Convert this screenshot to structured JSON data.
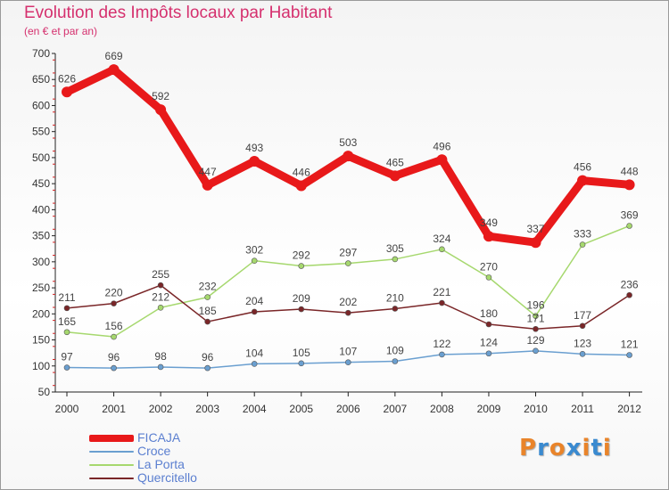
{
  "title": "Evolution des Impôts locaux par Habitant",
  "subtitle": "(en € et par an)",
  "logo": {
    "text": "Proxiti",
    "colors": [
      "#e9842a",
      "#3a8ad0",
      "#e9842a",
      "#3a8ad0",
      "#e9842a",
      "#3a8ad0",
      "#e9842a"
    ]
  },
  "chart_data": {
    "type": "line",
    "x": [
      "2000",
      "2001",
      "2002",
      "2003",
      "2004",
      "2005",
      "2006",
      "2007",
      "2008",
      "2009",
      "2010",
      "2011",
      "2012"
    ],
    "ylim": [
      50,
      700
    ],
    "yticks": [
      50,
      100,
      150,
      200,
      250,
      300,
      350,
      400,
      450,
      500,
      550,
      600,
      650,
      700
    ],
    "grid": false,
    "legend": "bottom-left",
    "series": [
      {
        "name": "FICAJA",
        "color": "#e8191a",
        "values": [
          626,
          669,
          592,
          447,
          493,
          446,
          503,
          465,
          496,
          349,
          337,
          456,
          448
        ]
      },
      {
        "name": "Croce",
        "color": "#6a9fd0",
        "values": [
          97,
          96,
          98,
          96,
          104,
          105,
          107,
          109,
          122,
          124,
          129,
          123,
          121
        ]
      },
      {
        "name": "La Porta",
        "color": "#a6d86e",
        "values": [
          165,
          156,
          212,
          232,
          302,
          292,
          297,
          305,
          324,
          270,
          196,
          333,
          369
        ]
      },
      {
        "name": "Quercitello",
        "color": "#7a2628",
        "values": [
          211,
          220,
          255,
          185,
          204,
          209,
          202,
          210,
          221,
          180,
          171,
          177,
          236
        ]
      }
    ]
  }
}
